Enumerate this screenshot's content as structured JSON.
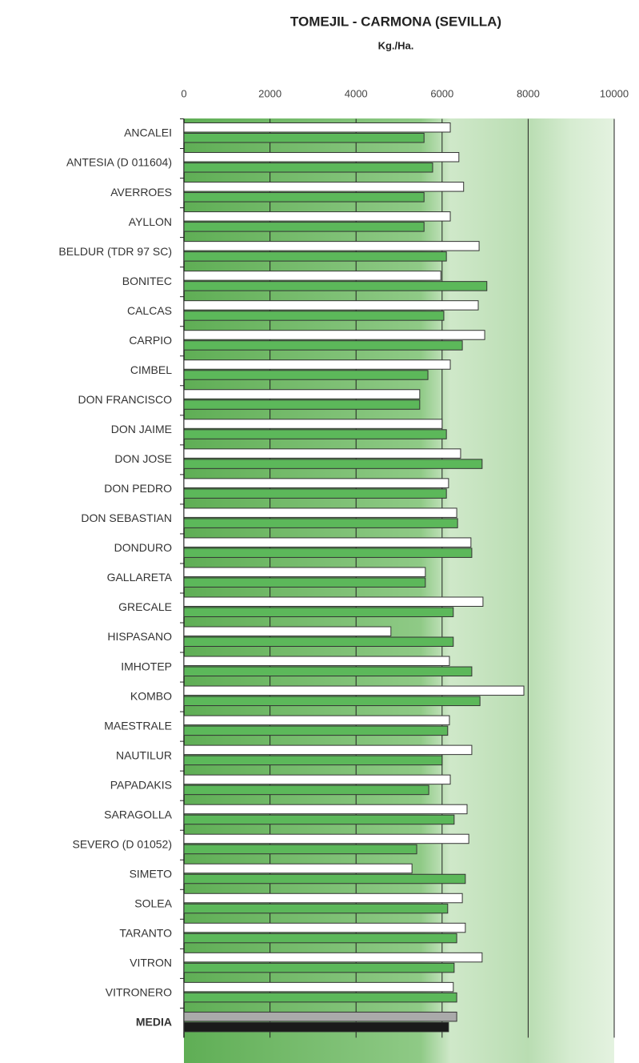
{
  "chart_data": {
    "type": "hbar",
    "title": "TOMEJIL - CARMONA (SEVILLA)",
    "subtitle": "Kg./Ha.",
    "categories": [
      "ANCALEI",
      "ANTESIA (D 011604)",
      "AVERROES",
      "AYLLON",
      "BELDUR (TDR 97 SC)",
      "BONITEC",
      "CALCAS",
      "CARPIO",
      "CIMBEL",
      "DON FRANCISCO",
      "DON JAIME",
      "DON JOSE",
      "DON PEDRO",
      "DON SEBASTIAN",
      "DONDURO",
      "GALLARETA",
      "GRECALE",
      "HISPASANO",
      "IMHOTEP",
      "KOMBO",
      "MAESTRALE",
      "NAUTILUR",
      "PAPADAKIS",
      "SARAGOLLA",
      "SEVERO (D 01052)",
      "SIMETO",
      "SOLEA",
      "TARANTO",
      "VITRON",
      "VITRONERO",
      "MEDIA"
    ],
    "series": [
      {
        "color": "#ffffff",
        "highlight_color": "#aaaaaa",
        "values": [
          6190,
          6390,
          6500,
          6190,
          6860,
          5970,
          6840,
          6990,
          6190,
          5480,
          6000,
          6430,
          6150,
          6340,
          6670,
          5610,
          6950,
          4810,
          6170,
          7900,
          6170,
          6690,
          6190,
          6580,
          6620,
          5300,
          6470,
          6540,
          6930,
          6260,
          6340
        ]
      },
      {
        "color": "#5cb85a",
        "highlight_color": "#1a1a1a",
        "values": [
          5580,
          5780,
          5580,
          5580,
          6100,
          7040,
          6040,
          6470,
          5670,
          5480,
          6100,
          6930,
          6100,
          6360,
          6690,
          5610,
          6260,
          6260,
          6690,
          6880,
          6130,
          6000,
          5690,
          6280,
          5410,
          6540,
          6130,
          6340,
          6280,
          6340,
          6150
        ]
      }
    ],
    "highlight_last": true,
    "xlim": [
      0,
      10000
    ],
    "xticks": [
      0,
      2000,
      4000,
      6000,
      8000,
      10000
    ],
    "grid": true
  }
}
